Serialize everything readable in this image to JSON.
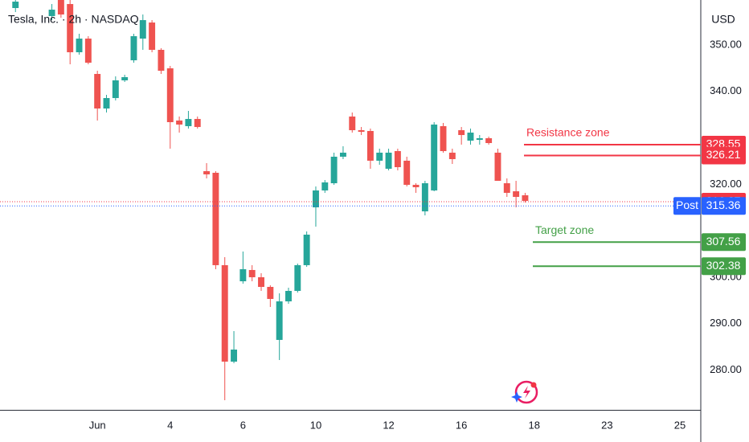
{
  "header": {
    "title": "Tesla, Inc. · 2h · NASDAQ",
    "currency": "USD"
  },
  "chart_data": {
    "type": "candlestick",
    "up_color": "#26a69a",
    "down_color": "#ef5350",
    "x": [
      1,
      5,
      6,
      7,
      8,
      9,
      10,
      11,
      12,
      13,
      14,
      15,
      16,
      17,
      18,
      19,
      20,
      21,
      22,
      23,
      24,
      25,
      26,
      27,
      28,
      29,
      30,
      31,
      32,
      33,
      34,
      35,
      36,
      37,
      38,
      39,
      40,
      41,
      42,
      43,
      44,
      45,
      46,
      47,
      48,
      49,
      50,
      51,
      52,
      53,
      54,
      55,
      56,
      57
    ],
    "open": [
      357.96,
      356.23,
      359.69,
      358.82,
      348.44,
      351.38,
      343.77,
      336.33,
      338.58,
      342.39,
      346.71,
      351.38,
      354.84,
      348.96,
      344.98,
      333.74,
      332.53,
      334.08,
      322.84,
      322.49,
      302.6,
      281.83,
      299.13,
      301.56,
      300.0,
      297.92,
      286.51,
      294.81,
      297.06,
      302.6,
      315.05,
      318.69,
      320.24,
      325.95,
      334.6,
      331.66,
      331.49,
      325.09,
      323.36,
      327.16,
      325.09,
      319.9,
      314.19,
      318.69,
      332.53,
      326.82,
      331.66,
      329.41,
      329.58,
      329.93,
      326.82,
      320.24,
      318.51,
      317.65
    ],
    "high": [
      359.69,
      358.82,
      360.55,
      359.69,
      352.42,
      351.9,
      344.46,
      339.27,
      343.25,
      343.6,
      352.42,
      356.57,
      355.36,
      349.31,
      345.5,
      334.6,
      335.81,
      334.6,
      324.57,
      322.84,
      304.33,
      288.41,
      305.54,
      302.6,
      300.87,
      298.27,
      296.54,
      297.75,
      302.94,
      309.86,
      319.55,
      320.93,
      326.82,
      328.2,
      335.47,
      332.35,
      332.01,
      327.68,
      327.68,
      327.68,
      325.95,
      320.24,
      320.76,
      333.39,
      333.22,
      327.68,
      332.35,
      332.01,
      330.62,
      330.28,
      327.68,
      321.28,
      320.76,
      318.17
    ],
    "low": [
      357.09,
      355.36,
      355.88,
      345.85,
      347.92,
      345.85,
      333.74,
      335.47,
      338.06,
      342.04,
      346.19,
      348.96,
      348.44,
      343.77,
      327.68,
      331.14,
      332.01,
      332.01,
      321.28,
      301.73,
      273.53,
      281.49,
      298.62,
      299.13,
      297.06,
      293.6,
      282.18,
      294.29,
      296.71,
      302.25,
      310.9,
      318.17,
      319.9,
      325.43,
      331.14,
      330.62,
      323.36,
      324.22,
      323.01,
      323.01,
      319.55,
      318.17,
      313.32,
      318.51,
      326.82,
      324.39,
      328.55,
      328.55,
      328.55,
      328.55,
      320.76,
      317.3,
      315.05,
      316.09
    ],
    "close": [
      359.34,
      357.61,
      356.57,
      348.44,
      351.38,
      346.19,
      336.33,
      338.58,
      342.39,
      343.08,
      351.9,
      355.36,
      348.96,
      344.46,
      333.39,
      332.87,
      334.08,
      332.35,
      322.15,
      302.6,
      281.83,
      284.43,
      301.73,
      300.0,
      297.92,
      295.33,
      294.81,
      297.06,
      302.6,
      309.17,
      318.69,
      320.42,
      325.95,
      326.82,
      331.66,
      331.31,
      325.09,
      326.82,
      326.82,
      323.7,
      319.9,
      319.38,
      320.24,
      332.87,
      327.16,
      325.43,
      330.62,
      331.14,
      329.93,
      328.89,
      320.76,
      318.17,
      317.3,
      316.44
    ],
    "xlim": [
      -0.7,
      76.3
    ],
    "xticks": [
      {
        "value": 10,
        "label": "Jun"
      },
      {
        "value": 18,
        "label": "4"
      },
      {
        "value": 26,
        "label": "6"
      },
      {
        "value": 34,
        "label": "10"
      },
      {
        "value": 42,
        "label": "12"
      },
      {
        "value": 50,
        "label": "16"
      },
      {
        "value": 58,
        "label": "18"
      },
      {
        "value": 66,
        "label": "23"
      },
      {
        "value": 74,
        "label": "25"
      }
    ],
    "ylim": [
      271.45,
      359.69
    ],
    "yticks": [
      {
        "value": 280,
        "label": "280.00"
      },
      {
        "value": 290,
        "label": "290.00"
      },
      {
        "value": 300,
        "label": "300.00"
      },
      {
        "value": 320,
        "label": "320.00"
      },
      {
        "value": 340,
        "label": "340.00"
      },
      {
        "value": 350,
        "label": "350.00"
      }
    ],
    "zones": [
      {
        "name": "Resistance zone",
        "color": "#f23645",
        "values": [
          328.55,
          326.21
        ]
      },
      {
        "name": "Target zone",
        "color": "#43a047",
        "values": [
          307.56,
          302.38
        ]
      }
    ],
    "last_price": {
      "value": 316.27,
      "color": "#f23645"
    },
    "post_price": {
      "label": "Post",
      "value": 315.36,
      "color": "#2962ff"
    }
  }
}
